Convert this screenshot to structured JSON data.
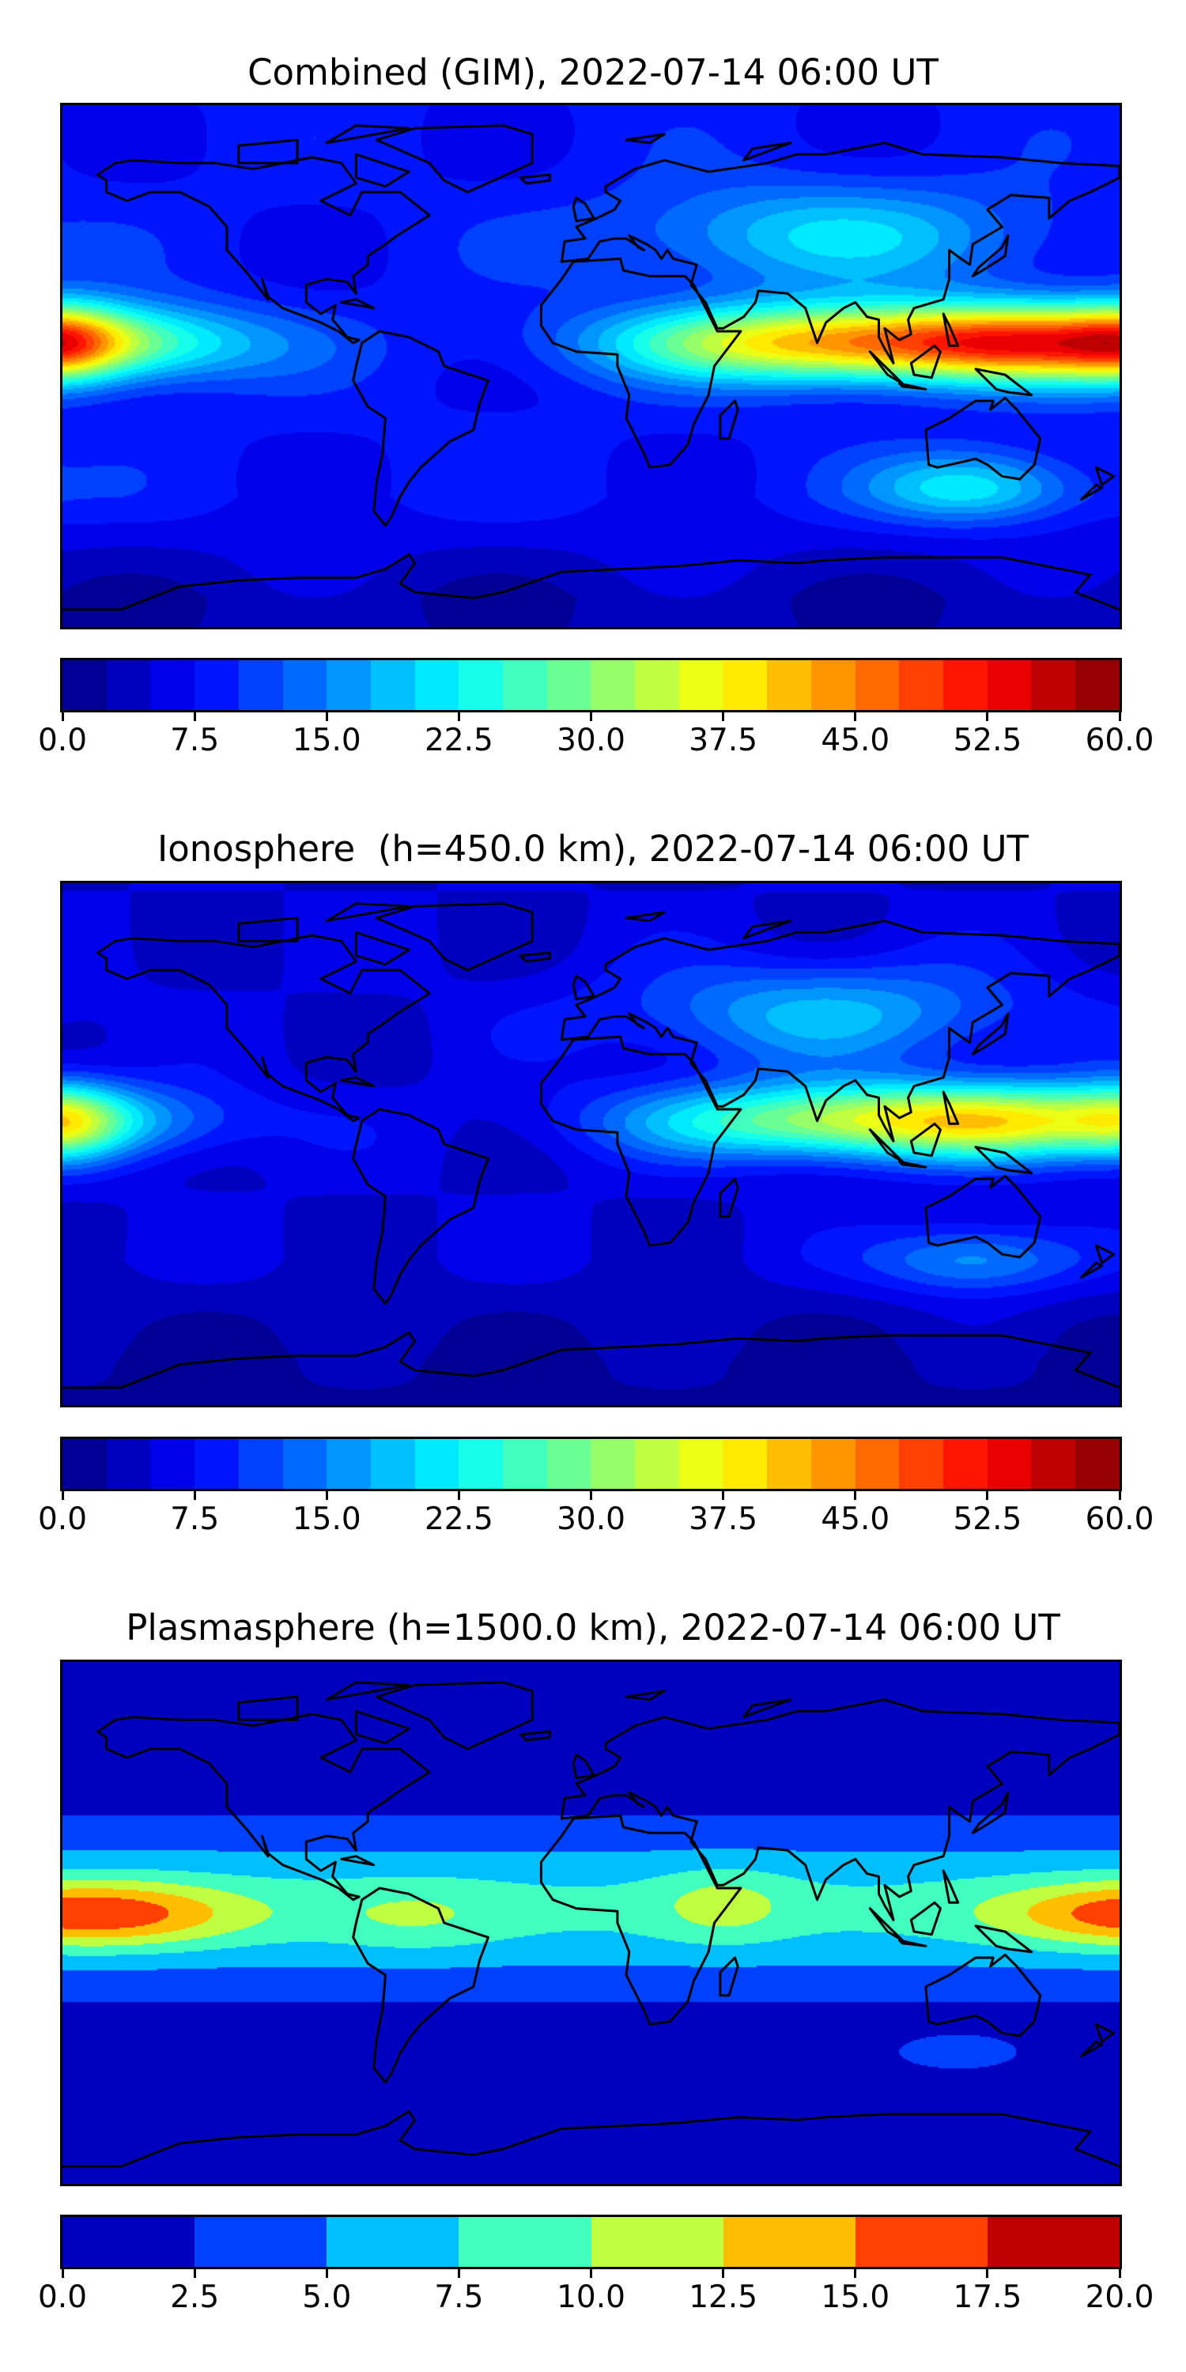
{
  "chart_data": [
    {
      "type": "heatmap",
      "title": "Combined (GIM), 2022-07-14 06:00 UT",
      "projection": "plate carree world map with coastlines",
      "colormap": "jet",
      "vmin": 0,
      "vmax": 60,
      "levels": 24,
      "level_step": 2.5,
      "colorbar_ticks": [
        "0.0",
        "7.5",
        "15.0",
        "22.5",
        "30.0",
        "37.5",
        "45.0",
        "52.5",
        "60.0"
      ]
    },
    {
      "type": "heatmap",
      "title": "Ionosphere  (h=450.0 km), 2022-07-14 06:00 UT",
      "projection": "plate carree world map with coastlines",
      "colormap": "jet",
      "vmin": 0,
      "vmax": 60,
      "levels": 24,
      "level_step": 2.5,
      "colorbar_ticks": [
        "0.0",
        "7.5",
        "15.0",
        "22.5",
        "30.0",
        "37.5",
        "45.0",
        "52.5",
        "60.0"
      ]
    },
    {
      "type": "heatmap",
      "title": "Plasmasphere (h=1500.0 km), 2022-07-14 06:00 UT",
      "projection": "plate carree world map with coastlines",
      "colormap": "jet",
      "vmin": 0,
      "vmax": 20,
      "levels": 8,
      "level_step": 2.5,
      "colorbar_ticks": [
        "0.0",
        "2.5",
        "5.0",
        "7.5",
        "10.0",
        "12.5",
        "15.0",
        "17.5",
        "20.0"
      ]
    }
  ]
}
